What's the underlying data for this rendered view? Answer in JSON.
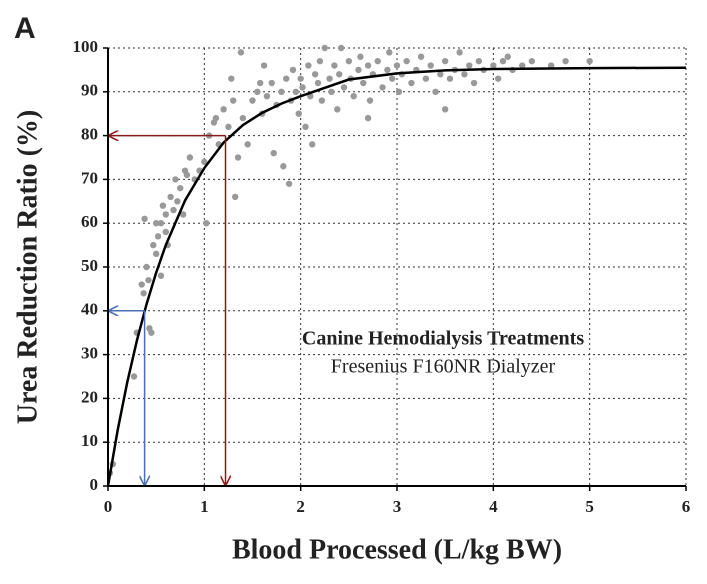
{
  "chart_data": {
    "type": "scatter",
    "panel_label": "A",
    "x_label": "Blood Processed (L/kg BW)",
    "y_label": "Urea Reduction Ratio (%)",
    "annotation_title": "Canine Hemodialysis Treatments",
    "annotation_subtitle": "Fresenius F160NR Dialyzer",
    "xlim": [
      0,
      6
    ],
    "xticks": [
      0,
      1,
      2,
      3,
      4,
      5,
      6
    ],
    "ylim": [
      0,
      100
    ],
    "yticks": [
      0,
      10,
      20,
      30,
      40,
      50,
      60,
      70,
      80,
      90,
      100
    ],
    "grid": true,
    "points": {
      "color": "#999999",
      "x": [
        0.02,
        0.05,
        0.27,
        0.3,
        0.35,
        0.37,
        0.38,
        0.4,
        0.42,
        0.43,
        0.45,
        0.47,
        0.5,
        0.5,
        0.52,
        0.55,
        0.55,
        0.57,
        0.6,
        0.6,
        0.62,
        0.65,
        0.68,
        0.7,
        0.72,
        0.75,
        0.78,
        0.8,
        0.82,
        0.85,
        0.9,
        0.95,
        1.0,
        1.02,
        1.05,
        1.1,
        1.12,
        1.15,
        1.2,
        1.25,
        1.3,
        1.32,
        1.35,
        1.38,
        1.4,
        1.45,
        1.5,
        1.55,
        1.58,
        1.6,
        1.62,
        1.65,
        1.7,
        1.72,
        1.75,
        1.8,
        1.82,
        1.85,
        1.88,
        1.9,
        1.92,
        1.95,
        1.98,
        2.0,
        2.02,
        2.05,
        2.08,
        2.1,
        2.12,
        2.15,
        2.18,
        2.2,
        2.22,
        2.25,
        2.3,
        2.32,
        2.35,
        2.38,
        2.4,
        2.42,
        2.45,
        2.5,
        2.52,
        2.55,
        2.6,
        2.62,
        2.65,
        2.7,
        2.72,
        2.75,
        2.8,
        2.85,
        2.9,
        2.92,
        2.95,
        3.0,
        3.02,
        3.05,
        3.1,
        3.15,
        3.2,
        3.25,
        3.3,
        3.35,
        3.4,
        3.45,
        3.5,
        3.55,
        3.6,
        3.65,
        3.7,
        3.75,
        3.8,
        3.85,
        3.9,
        4.0,
        4.05,
        4.1,
        4.15,
        4.2,
        4.3,
        4.4,
        4.6,
        4.75,
        5.0,
        3.5,
        2.7,
        1.28
      ],
      "y": [
        3,
        5,
        25,
        35,
        46,
        44,
        61,
        50,
        47,
        36,
        35,
        55,
        53,
        60,
        57,
        60,
        48,
        64,
        58,
        62,
        55,
        66,
        63,
        70,
        65,
        68,
        62,
        72,
        71,
        75,
        70,
        72,
        74,
        60,
        80,
        83,
        84,
        78,
        86,
        82,
        88,
        66,
        75,
        99,
        84,
        78,
        88,
        90,
        92,
        85,
        96,
        89,
        92,
        76,
        87,
        90,
        73,
        93,
        69,
        88,
        95,
        90,
        85,
        93,
        91,
        82,
        96,
        89,
        78,
        94,
        92,
        97,
        88,
        100,
        93,
        90,
        96,
        86,
        94,
        100,
        91,
        97,
        93,
        89,
        95,
        98,
        92,
        96,
        88,
        94,
        97,
        91,
        95,
        99,
        93,
        96,
        90,
        94,
        97,
        92,
        95,
        98,
        93,
        96,
        90,
        94,
        97,
        93,
        95,
        99,
        94,
        96,
        92,
        97,
        95,
        96,
        93,
        97,
        98,
        95,
        96,
        97,
        96,
        97,
        97,
        86,
        84,
        93
      ]
    },
    "fit": {
      "color": "#000000",
      "x": [
        0,
        0.1,
        0.2,
        0.3,
        0.4,
        0.5,
        0.6,
        0.8,
        1.0,
        1.2,
        1.4,
        1.6,
        1.8,
        2.0,
        2.5,
        3.0,
        3.5,
        4.0,
        5.0,
        6.0
      ],
      "y": [
        0,
        12.7,
        23.7,
        33.2,
        41.5,
        48.7,
        55.0,
        65.2,
        72.6,
        78.4,
        82.4,
        85.2,
        87.3,
        89.0,
        92.8,
        94.2,
        94.9,
        95.2,
        95.4,
        95.5
      ]
    },
    "guides": [
      {
        "x": 1.22,
        "y": 80,
        "color": "#8b1a1a"
      },
      {
        "x": 0.38,
        "y": 40,
        "color": "#4a6fb5"
      }
    ]
  }
}
